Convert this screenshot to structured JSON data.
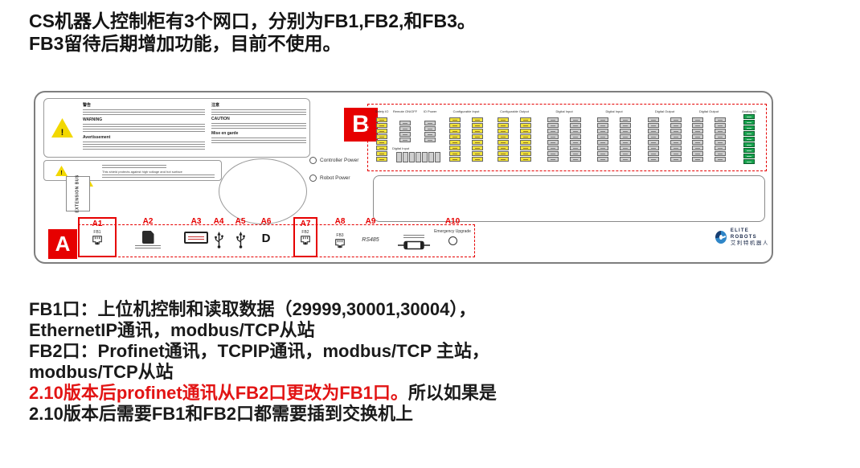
{
  "intro": {
    "line1": "CS机器人控制柜有3个网口，分别为FB1,FB2,和FB3。",
    "line2": "FB3留待后期增加功能，目前不使用。"
  },
  "notes": {
    "line1": "FB1口：上位机控制和读取数据（29999,30001,30004），",
    "line2": "EthernetIP通讯，modbus/TCP从站",
    "line3": "FB2口：Profinet通讯，TCPIP通讯，modbus/TCP 主站，",
    "line4": "modbus/TCP从站",
    "line5_red": "2.10版本后profinet通讯从FB2口更改为FB1口。",
    "line5_black": "所以如果是",
    "line6": "2.10版本后需要FB1和FB2口都需要插到交换机上"
  },
  "panel": {
    "section_a_label": "A",
    "section_b_label": "B",
    "warnings": {
      "zh1": "警告",
      "en1": "WARNING",
      "fr1": "Avertissement",
      "zh2": "注意",
      "en2": "CAUTION",
      "fr2": "Mise en garde",
      "shield_note": "This shield protects against high voltage and hot surface"
    },
    "extension_label": "EXTENSION BUS",
    "leds": {
      "controller": "Controller Power",
      "robot": "Robot Power"
    },
    "ports": [
      {
        "id": "A1",
        "port": "FB1",
        "type": "ethernet",
        "highlighted": true
      },
      {
        "id": "A2",
        "port": "",
        "type": "sd-card",
        "highlighted": false
      },
      {
        "id": "A3",
        "port": "",
        "type": "pendant",
        "highlighted": false
      },
      {
        "id": "A4",
        "port": "",
        "type": "usb",
        "highlighted": false
      },
      {
        "id": "A5",
        "port": "",
        "type": "usb",
        "highlighted": false
      },
      {
        "id": "A6",
        "port": "",
        "type": "displayport",
        "highlighted": false
      },
      {
        "id": "A7",
        "port": "FB2",
        "type": "ethernet",
        "highlighted": true
      },
      {
        "id": "A8",
        "port": "FB3",
        "type": "ethernet",
        "highlighted": false
      },
      {
        "id": "A9",
        "port": "RS485",
        "type": "serial",
        "highlighted": false
      },
      {
        "id": "",
        "port": "",
        "type": "fuse",
        "highlighted": false
      },
      {
        "id": "A10",
        "port": "Emergency Upgrade",
        "type": "button",
        "highlighted": false
      }
    ],
    "terminal_groups": [
      {
        "header": "Safety IO",
        "color": "yellow",
        "cols": 1,
        "count": 8
      },
      {
        "header": "Remote ON/OFF",
        "color": "gray",
        "cols": 1,
        "count": 4
      },
      {
        "header": "IO Power",
        "color": "gray",
        "cols": 1,
        "count": 4
      },
      {
        "header": "Digital Input",
        "color": "gray",
        "cols": 0,
        "count": 7,
        "row": true
      },
      {
        "header": "Configurable Input",
        "color": "yellow",
        "cols": 2,
        "count": 8
      },
      {
        "header": "Configurable Output",
        "color": "yellow",
        "cols": 2,
        "count": 8
      },
      {
        "header": "Digital Input",
        "color": "gray",
        "cols": 2,
        "count": 8
      },
      {
        "header": "Digital Input",
        "color": "gray",
        "cols": 2,
        "count": 8
      },
      {
        "header": "Digital Output",
        "color": "gray",
        "cols": 2,
        "count": 8
      },
      {
        "header": "Digital Output",
        "color": "gray",
        "cols": 2,
        "count": 8
      },
      {
        "header": "Analog IO",
        "color": "green",
        "cols": 1,
        "count": 9
      }
    ],
    "logo": {
      "en": "ELITE ROBOTS",
      "zh": "艾利特机器人"
    }
  },
  "colors": {
    "accent_red": "#e60000",
    "block_yellow": "#f0e23a",
    "block_gray": "#cfcfcf",
    "block_green": "#18a34e"
  }
}
